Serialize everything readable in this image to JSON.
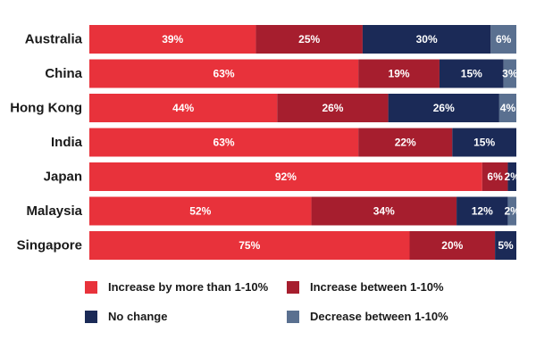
{
  "chart_data": {
    "type": "bar",
    "orientation": "horizontal",
    "stacked": true,
    "categories": [
      "Australia",
      "China",
      "Hong Kong",
      "India",
      "Japan",
      "Malaysia",
      "Singapore"
    ],
    "series": [
      {
        "name": "Increase by more than 1-10%",
        "color": "#e8323b",
        "values": [
          39,
          63,
          44,
          63,
          92,
          52,
          75
        ]
      },
      {
        "name": "Increase between 1-10%",
        "color": "#a61e2e",
        "values": [
          25,
          19,
          26,
          22,
          6,
          34,
          20
        ]
      },
      {
        "name": "No change",
        "color": "#1b2a57",
        "values": [
          30,
          15,
          26,
          15,
          2,
          12,
          5
        ]
      },
      {
        "name": "Decrease between 1-10%",
        "color": "#5a7090",
        "values": [
          6,
          3,
          4,
          0,
          0,
          2,
          0
        ]
      }
    ],
    "value_suffix": "%",
    "xlim": [
      0,
      100
    ],
    "legend_position": "bottom"
  }
}
